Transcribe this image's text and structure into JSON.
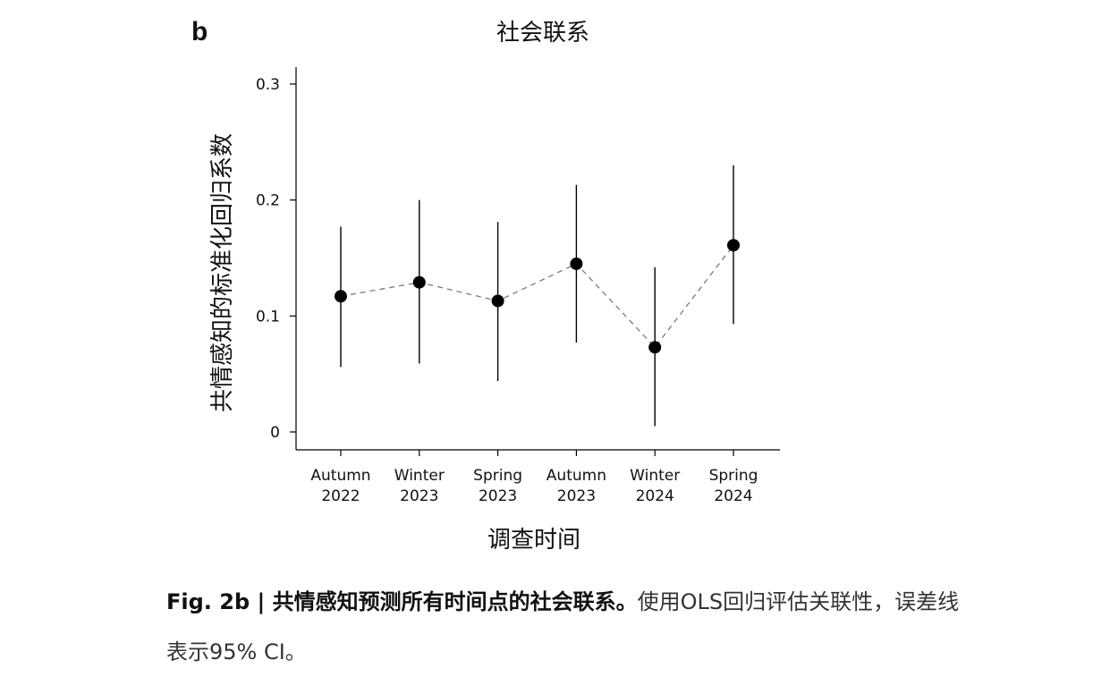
{
  "panel_label": "b",
  "caption": {
    "lead": "Fig. 2b | 共情感知预测所有时间点的社会联系。",
    "rest": "使用OLS回归评估关联性，误差线表示95% CI。"
  },
  "chart_data": {
    "type": "scatter",
    "title": "社会联系",
    "xlabel": "调查时间",
    "ylabel": "共情感知的标准化回归系数",
    "categories": [
      [
        "Autumn",
        "2022"
      ],
      [
        "Winter",
        "2023"
      ],
      [
        "Spring",
        "2023"
      ],
      [
        "Autumn",
        "2023"
      ],
      [
        "Winter",
        "2024"
      ],
      [
        "Spring",
        "2024"
      ]
    ],
    "ylim": [
      0,
      0.3
    ],
    "yticks": [
      "0",
      "0.1",
      "0.2",
      "0.3"
    ],
    "series": [
      {
        "values": [
          0.117,
          0.129,
          0.113,
          0.145,
          0.073,
          0.161
        ],
        "ci_lower": [
          0.056,
          0.059,
          0.044,
          0.077,
          0.005,
          0.093
        ],
        "ci_upper": [
          0.177,
          0.2,
          0.181,
          0.213,
          0.142,
          0.23
        ]
      }
    ],
    "connector": "dashed",
    "grid": false,
    "legend": "none",
    "colors": {
      "marker": "#000000",
      "errorbar": "#000000",
      "connector": "#7a7a7a",
      "axis": "#000000"
    }
  }
}
